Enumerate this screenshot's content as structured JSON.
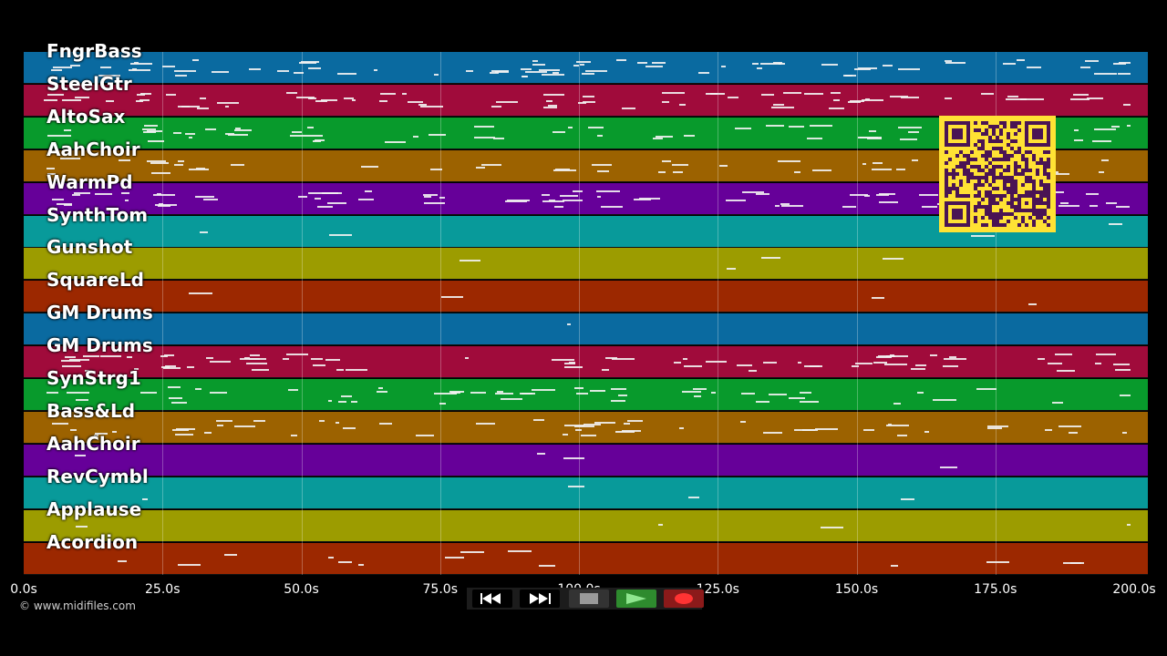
{
  "tracks": [
    {
      "name": "FngrBass",
      "color": "#0a6aa0"
    },
    {
      "name": "SteelGtr",
      "color": "#a00b3b"
    },
    {
      "name": "AltoSax",
      "color": "#089a2c"
    },
    {
      "name": "AahChoir",
      "color": "#9c6200"
    },
    {
      "name": "WarmPd",
      "color": "#660099"
    },
    {
      "name": "SynthTom",
      "color": "#089a9a"
    },
    {
      "name": "Gunshot",
      "color": "#9c9c00"
    },
    {
      "name": "SquareLd",
      "color": "#9c2800"
    },
    {
      "name": "GM Drums",
      "color": "#0a6aa0"
    },
    {
      "name": "GM Drums",
      "color": "#a00b3b"
    },
    {
      "name": "SynStrg1",
      "color": "#089a2c"
    },
    {
      "name": "Bass&Ld",
      "color": "#9c6200"
    },
    {
      "name": "AahChoir",
      "color": "#660099"
    },
    {
      "name": "RevCymbl",
      "color": "#089a9a"
    },
    {
      "name": "Applause",
      "color": "#9c9c00"
    },
    {
      "name": "Acordion",
      "color": "#9c2800"
    }
  ],
  "timeline": {
    "start_seconds": 0,
    "end_seconds": 200,
    "tick_labels": [
      "0.0s",
      "25.0s",
      "50.0s",
      "75.0s",
      "100.0s",
      "125.0s",
      "150.0s",
      "175.0s",
      "200.0s"
    ]
  },
  "copyright": "© www.midifiles.com",
  "transport": {
    "rewind_icon": "rewind-icon",
    "fast_forward_icon": "fast-forward-icon",
    "stop_icon": "stop-icon",
    "play_icon": "play-icon",
    "record_icon": "record-icon",
    "play_color": "#2e8b2e",
    "record_color": "#8b1a1a"
  }
}
